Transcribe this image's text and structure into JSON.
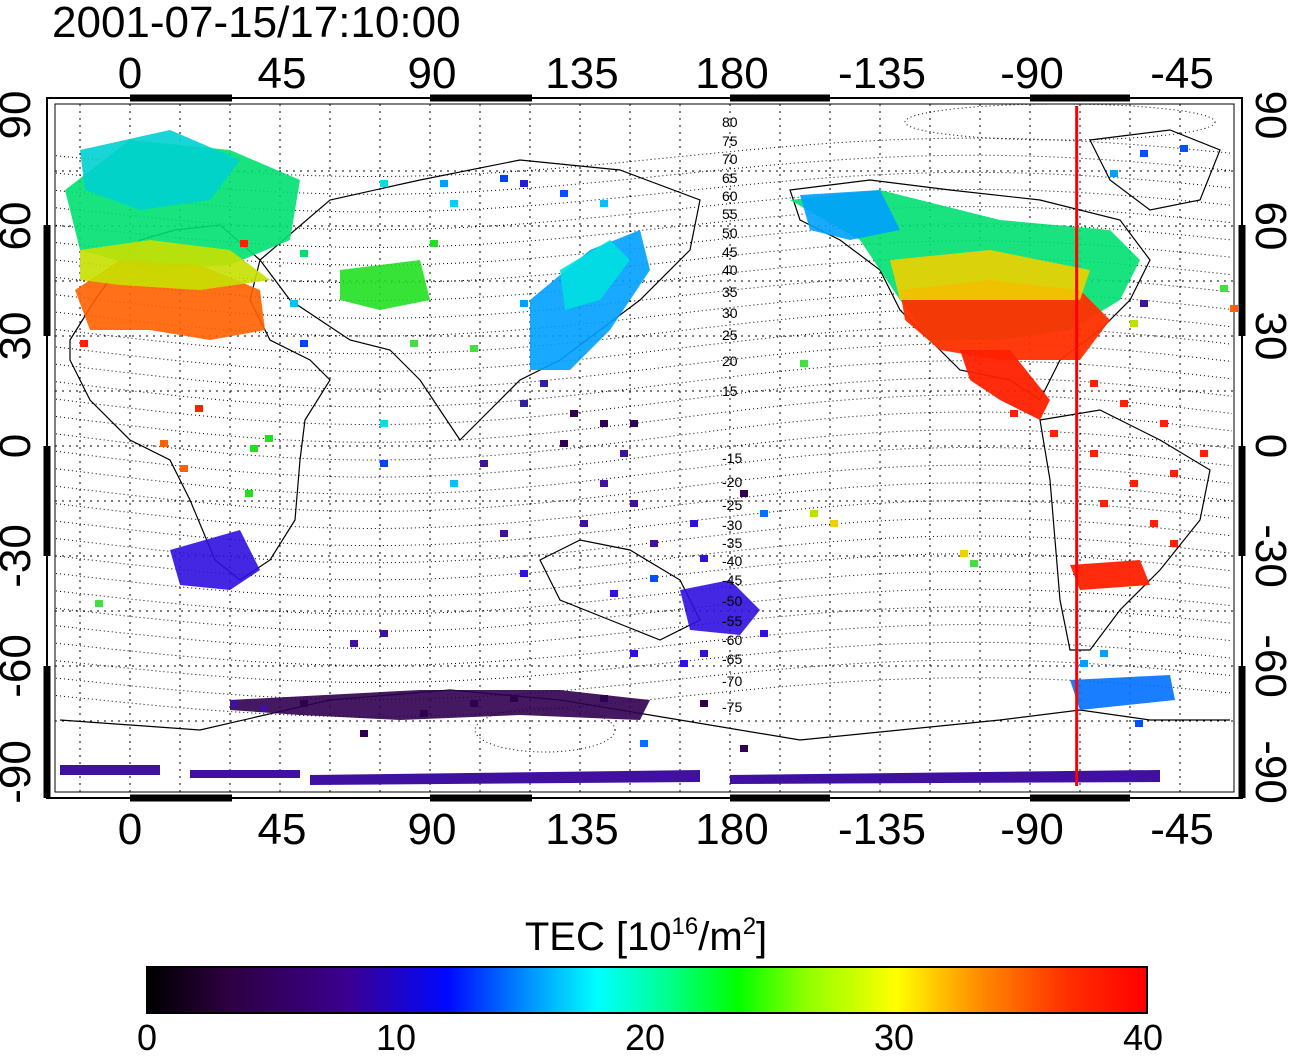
{
  "timestamp": "2001-07-15/17:10:00",
  "lon_ticks": [
    "0",
    "45",
    "90",
    "135",
    "180",
    "-135",
    "-90",
    "-45"
  ],
  "lat_ticks": [
    "90",
    "60",
    "30",
    "0",
    "-30",
    "-60",
    "-90"
  ],
  "contour_labels": [
    "80",
    "75",
    "70",
    "65",
    "60",
    "55",
    "50",
    "45",
    "40",
    "35",
    "30",
    "25",
    "20",
    "15",
    "-15",
    "-20",
    "-25",
    "-30",
    "-35",
    "-40",
    "-45",
    "-50",
    "-55",
    "-60",
    "-65",
    "-70",
    "-75"
  ],
  "colorbar": {
    "title_main": "TEC  [10",
    "title_exp1": "16",
    "title_mid": "/m",
    "title_exp2": "2",
    "title_end": "]",
    "ticks": [
      "0",
      "10",
      "20",
      "30",
      "40"
    ],
    "range": [
      0,
      40
    ]
  },
  "terminator_longitude": -76,
  "colors": {
    "frame": "#000000",
    "terminator": "#ff0000",
    "grid": "#000000"
  }
}
